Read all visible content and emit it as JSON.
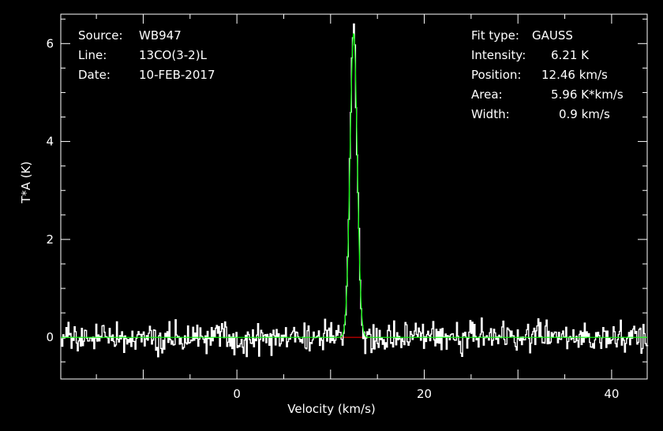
{
  "header_left": {
    "source_label": "Source:",
    "source_value": "WB947",
    "line_label": "Line:",
    "line_value": "13CO(3-2)L",
    "date_label": "Date:",
    "date_value": "10-FEB-2017"
  },
  "header_right": {
    "fit_label": "Fit type:",
    "fit_value": "GAUSS",
    "intensity_label": "Intensity:",
    "intensity_value": "6.21 K",
    "position_label": "Position:",
    "position_value": "12.46 km/s",
    "area_label": "Area:",
    "area_value": "5.96 K*km/s",
    "width_label": "Width:",
    "width_value": "0.9 km/s"
  },
  "chart_data": {
    "type": "line",
    "xlabel": "Velocity (km/s)",
    "ylabel": "T*A (K)",
    "xlim": [
      -18.8,
      43.8
    ],
    "ylim": [
      -0.85,
      6.6
    ],
    "xticks": [
      0,
      20,
      40
    ],
    "yticks": [
      0,
      2,
      4,
      6
    ],
    "series": [
      {
        "kind": "spectrum",
        "color": "#ffffff",
        "noise_rms": 0.15
      },
      {
        "kind": "gaussian_fit",
        "color": "#00ff00",
        "amplitude": 6.21,
        "center": 12.46,
        "fwhm": 0.9
      },
      {
        "kind": "baseline",
        "color": "#ff0000",
        "y": 0
      }
    ],
    "peak_observed": 6.4,
    "colors": {
      "background": "#000000",
      "axes": "#ffffff",
      "spectrum": "#ffffff",
      "fit": "#00ff00",
      "baseline": "#ff0000"
    }
  }
}
